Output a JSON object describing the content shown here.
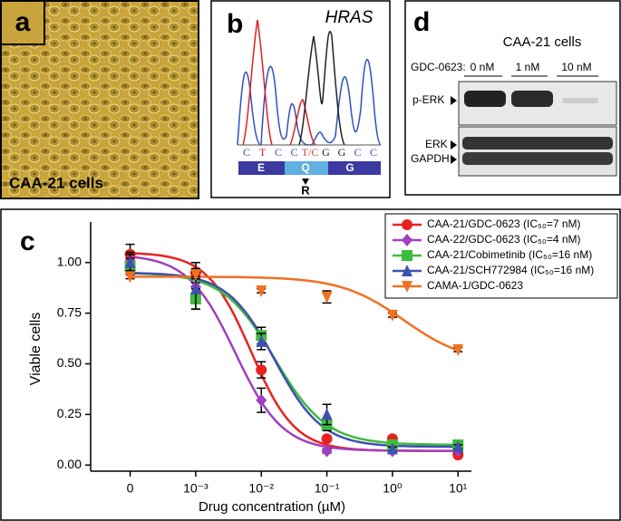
{
  "panels": {
    "a": {
      "label": "a",
      "caption": "CAA-21 cells"
    },
    "b": {
      "label": "b",
      "gene": "HRAS",
      "bases": [
        {
          "text": "C",
          "color": "#3050c0"
        },
        {
          "text": "T",
          "color": "#e02020"
        },
        {
          "text": "C",
          "color": "#3050c0"
        },
        {
          "text": "C",
          "color": "#3050c0"
        },
        {
          "text": "T/C",
          "color": "#c05030"
        },
        {
          "text": "G",
          "color": "#222222"
        },
        {
          "text": "G",
          "color": "#222222"
        },
        {
          "text": "C",
          "color": "#3050c0"
        },
        {
          "text": "C",
          "color": "#3050c0"
        }
      ],
      "codons": [
        "E",
        "Q",
        "G"
      ],
      "mutation": "R"
    },
    "d": {
      "label": "d",
      "title": "CAA-21 cells",
      "treatment": "GDC-0623:",
      "doses": [
        "0 nM",
        "1 nM",
        "10 nM"
      ],
      "bands": [
        "p-ERK",
        "ERK",
        "GAPDH"
      ]
    }
  },
  "chart_data": {
    "type": "dose_response",
    "panel_label": "c",
    "x_label": "Drug concentration (µM)",
    "y_label": "Viable cells",
    "x": [
      0,
      0.001,
      0.01,
      0.1,
      1,
      10
    ],
    "xscale": "log",
    "xlim": [
      2.5e-05,
      16
    ],
    "xticks": [
      0,
      {
        "value": 0.001,
        "label": "10⁻³"
      },
      {
        "value": 0.01,
        "label": "10⁻²"
      },
      {
        "value": 0.1,
        "label": "10⁻¹"
      },
      {
        "value": 1,
        "label": "10⁰"
      },
      {
        "value": 10,
        "label": "10¹"
      }
    ],
    "ylim": [
      -0.03,
      1.2
    ],
    "yticks": [
      {
        "value": 0,
        "label": "0.00"
      },
      {
        "value": 0.25,
        "label": "0.25"
      },
      {
        "value": 0.5,
        "label": "0.50"
      },
      {
        "value": 0.75,
        "label": "0.75"
      },
      {
        "value": 1,
        "label": "1.00"
      }
    ],
    "legend": "top-right",
    "series": [
      {
        "name": "CAA-21/GDC-0623 (IC₅₀=7 nM)",
        "color": "#e8231f",
        "marker": "circle",
        "values": [
          1.04,
          0.95,
          0.47,
          0.13,
          0.13,
          0.05
        ],
        "errors": [
          0.05,
          0.05,
          0.04,
          0.01,
          0.01,
          0.01
        ],
        "curve": {
          "top": 1.05,
          "bottom": 0.07,
          "ec50": 0.007,
          "hill": 1.3
        }
      },
      {
        "name": "CAA-22/GDC-0623 (IC₅₀=4 nM)",
        "color": "#a040c0",
        "marker": "diamond",
        "values": [
          1.01,
          0.88,
          0.32,
          0.07,
          0.07,
          0.07
        ],
        "errors": [
          0.04,
          0.04,
          0.06,
          0.01,
          0.01,
          0.01
        ],
        "curve": {
          "top": 1.04,
          "bottom": 0.07,
          "ec50": 0.004,
          "hill": 1.2
        }
      },
      {
        "name": "CAA-21/Cobimetinib (IC₅₀=16 nM)",
        "color": "#3dbb3d",
        "marker": "square",
        "values": [
          0.98,
          0.82,
          0.64,
          0.2,
          0.1,
          0.1
        ],
        "errors": [
          0.04,
          0.05,
          0.04,
          0.03,
          0.01,
          0.01
        ],
        "curve": {
          "top": 0.95,
          "bottom": 0.1,
          "ec50": 0.016,
          "hill": 1.1
        }
      },
      {
        "name": "CAA-21/SCH772984 (IC₅₀=16 nM)",
        "color": "#4050b0",
        "marker": "triangle-up",
        "values": [
          1.0,
          0.87,
          0.61,
          0.25,
          0.08,
          0.09
        ],
        "errors": [
          0.04,
          0.1,
          0.04,
          0.05,
          0.01,
          0.01
        ],
        "curve": {
          "top": 0.95,
          "bottom": 0.09,
          "ec50": 0.016,
          "hill": 1.2
        }
      },
      {
        "name": "CAMA-1/GDC-0623",
        "color": "#f07020",
        "marker": "triangle-down",
        "values": [
          0.93,
          0.94,
          0.86,
          0.83,
          0.74,
          0.57
        ],
        "errors": [
          0.01,
          0.01,
          0.01,
          0.03,
          0.01,
          0.01
        ],
        "curve": {
          "top": 0.93,
          "bottom": 0.5,
          "ec50": 1.5,
          "hill": 0.9
        }
      }
    ]
  }
}
